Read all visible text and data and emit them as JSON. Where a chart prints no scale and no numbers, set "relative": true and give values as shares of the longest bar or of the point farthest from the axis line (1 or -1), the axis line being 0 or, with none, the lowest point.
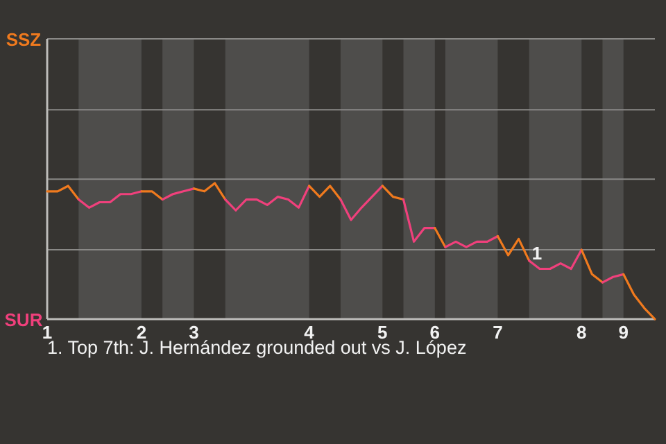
{
  "chart_data": {
    "type": "line",
    "relative": true,
    "categories": [
      "1",
      null,
      null,
      null,
      null,
      null,
      null,
      null,
      null,
      "2",
      null,
      null,
      null,
      null,
      "3",
      null,
      null,
      null,
      null,
      null,
      null,
      null,
      null,
      null,
      null,
      "4",
      null,
      null,
      null,
      null,
      null,
      null,
      "5",
      null,
      null,
      null,
      null,
      "6",
      null,
      null,
      null,
      null,
      null,
      "7",
      null,
      null,
      null,
      null,
      null,
      null,
      null,
      "8",
      null,
      null,
      null,
      "9",
      null,
      null,
      null
    ],
    "ref_lines": [
      {
        "axis": "y",
        "value": 0.51,
        "color": "#8a8987"
      },
      {
        "axis": "y",
        "value": 1.03,
        "color": "#8a8987"
      },
      {
        "axis": "y",
        "value": 1.54,
        "color": "#8a8987"
      }
    ],
    "marker": "none",
    "line_style": "solid",
    "series": [
      {
        "name": "SSZ",
        "color": "#f07a1e",
        "values": [
          0.94,
          0.94,
          0.98,
          0.88,
          null,
          null,
          null,
          null,
          null,
          null,
          null,
          null,
          null,
          null,
          null,
          null,
          null,
          null,
          null,
          null,
          null,
          null,
          null,
          null,
          null,
          null,
          null,
          null,
          null,
          null,
          null,
          null,
          null,
          null,
          null,
          null,
          null,
          null,
          null,
          null,
          null,
          null,
          null,
          null,
          null,
          null,
          null,
          null,
          null,
          null,
          null,
          null,
          null,
          null,
          null,
          null,
          null,
          null,
          null
        ]
      },
      {
        "name": "SUR",
        "color": "#f0407c",
        "values": [
          null,
          null,
          null,
          0.88,
          0.82,
          0.86,
          0.86,
          0.92,
          0.92,
          0.94,
          null,
          null,
          null,
          null,
          null,
          null,
          null,
          null,
          null,
          null,
          null,
          null,
          null,
          null,
          null,
          null,
          null,
          null,
          null,
          null,
          null,
          null,
          null,
          null,
          null,
          null,
          null,
          null,
          null,
          null,
          null,
          null,
          null,
          null,
          null,
          null,
          null,
          null,
          null,
          null,
          null,
          null,
          null,
          null,
          null,
          null,
          null,
          null,
          null
        ]
      },
      {
        "color": "#f07a1e",
        "values": [
          null,
          null,
          null,
          null,
          null,
          null,
          null,
          null,
          null,
          0.94,
          0.94,
          0.88,
          null,
          null,
          null,
          null,
          null,
          null,
          null,
          null,
          null,
          null,
          null,
          null,
          null,
          null,
          null,
          null,
          null,
          null,
          null,
          null,
          null,
          null,
          null,
          null,
          null,
          null,
          null,
          null,
          null,
          null,
          null,
          null,
          null,
          null,
          null,
          null,
          null,
          null,
          null,
          null,
          null,
          null,
          null,
          null,
          null,
          null,
          null
        ]
      },
      {
        "color": "#f0407c",
        "values": [
          null,
          null,
          null,
          null,
          null,
          null,
          null,
          null,
          null,
          null,
          null,
          0.88,
          0.92,
          0.94,
          0.96,
          null,
          null,
          null,
          null,
          null,
          null,
          null,
          null,
          null,
          null,
          null,
          null,
          null,
          null,
          null,
          null,
          null,
          null,
          null,
          null,
          null,
          null,
          null,
          null,
          null,
          null,
          null,
          null,
          null,
          null,
          null,
          null,
          null,
          null,
          null,
          null,
          null,
          null,
          null,
          null,
          null,
          null,
          null,
          null
        ]
      },
      {
        "color": "#f07a1e",
        "values": [
          null,
          null,
          null,
          null,
          null,
          null,
          null,
          null,
          null,
          null,
          null,
          null,
          null,
          null,
          0.96,
          0.94,
          1,
          0.88,
          null,
          null,
          null,
          null,
          null,
          null,
          null,
          null,
          null,
          null,
          null,
          null,
          null,
          null,
          null,
          null,
          null,
          null,
          null,
          null,
          null,
          null,
          null,
          null,
          null,
          null,
          null,
          null,
          null,
          null,
          null,
          null,
          null,
          null,
          null,
          null,
          null,
          null,
          null,
          null,
          null
        ]
      },
      {
        "color": "#f0407c",
        "values": [
          null,
          null,
          null,
          null,
          null,
          null,
          null,
          null,
          null,
          null,
          null,
          null,
          null,
          null,
          null,
          null,
          null,
          0.88,
          0.8,
          0.88,
          0.88,
          0.84,
          0.9,
          0.88,
          0.82,
          0.98,
          null,
          null,
          null,
          null,
          null,
          null,
          null,
          null,
          null,
          null,
          null,
          null,
          null,
          null,
          null,
          null,
          null,
          null,
          null,
          null,
          null,
          null,
          null,
          null,
          null,
          null,
          null,
          null,
          null,
          null,
          null,
          null,
          null
        ]
      },
      {
        "color": "#f07a1e",
        "values": [
          null,
          null,
          null,
          null,
          null,
          null,
          null,
          null,
          null,
          null,
          null,
          null,
          null,
          null,
          null,
          null,
          null,
          null,
          null,
          null,
          null,
          null,
          null,
          null,
          null,
          0.98,
          0.9,
          0.98,
          0.88,
          null,
          null,
          null,
          null,
          null,
          null,
          null,
          null,
          null,
          null,
          null,
          null,
          null,
          null,
          null,
          null,
          null,
          null,
          null,
          null,
          null,
          null,
          null,
          null,
          null,
          null,
          null,
          null,
          null,
          null
        ]
      },
      {
        "color": "#f0407c",
        "values": [
          null,
          null,
          null,
          null,
          null,
          null,
          null,
          null,
          null,
          null,
          null,
          null,
          null,
          null,
          null,
          null,
          null,
          null,
          null,
          null,
          null,
          null,
          null,
          null,
          null,
          null,
          null,
          null,
          0.88,
          0.73,
          0.82,
          0.9,
          0.98,
          null,
          null,
          null,
          null,
          null,
          null,
          null,
          null,
          null,
          null,
          null,
          null,
          null,
          null,
          null,
          null,
          null,
          null,
          null,
          null,
          null,
          null,
          null,
          null,
          null,
          null
        ]
      },
      {
        "color": "#f07a1e",
        "values": [
          null,
          null,
          null,
          null,
          null,
          null,
          null,
          null,
          null,
          null,
          null,
          null,
          null,
          null,
          null,
          null,
          null,
          null,
          null,
          null,
          null,
          null,
          null,
          null,
          null,
          null,
          null,
          null,
          null,
          null,
          null,
          null,
          0.98,
          0.9,
          0.88,
          null,
          null,
          null,
          null,
          null,
          null,
          null,
          null,
          null,
          null,
          null,
          null,
          null,
          null,
          null,
          null,
          null,
          null,
          null,
          null,
          null,
          null,
          null,
          null
        ]
      },
      {
        "color": "#f0407c",
        "values": [
          null,
          null,
          null,
          null,
          null,
          null,
          null,
          null,
          null,
          null,
          null,
          null,
          null,
          null,
          null,
          null,
          null,
          null,
          null,
          null,
          null,
          null,
          null,
          null,
          null,
          null,
          null,
          null,
          null,
          null,
          null,
          null,
          null,
          null,
          0.88,
          0.57,
          0.67,
          0.67,
          null,
          null,
          null,
          null,
          null,
          null,
          null,
          null,
          null,
          null,
          null,
          null,
          null,
          null,
          null,
          null,
          null,
          null,
          null,
          null,
          null
        ]
      },
      {
        "color": "#f07a1e",
        "values": [
          null,
          null,
          null,
          null,
          null,
          null,
          null,
          null,
          null,
          null,
          null,
          null,
          null,
          null,
          null,
          null,
          null,
          null,
          null,
          null,
          null,
          null,
          null,
          null,
          null,
          null,
          null,
          null,
          null,
          null,
          null,
          null,
          null,
          null,
          null,
          null,
          null,
          0.67,
          0.53,
          null,
          null,
          null,
          null,
          null,
          null,
          null,
          null,
          null,
          null,
          null,
          null,
          null,
          null,
          null,
          null,
          null,
          null,
          null,
          null
        ]
      },
      {
        "color": "#f0407c",
        "values": [
          null,
          null,
          null,
          null,
          null,
          null,
          null,
          null,
          null,
          null,
          null,
          null,
          null,
          null,
          null,
          null,
          null,
          null,
          null,
          null,
          null,
          null,
          null,
          null,
          null,
          null,
          null,
          null,
          null,
          null,
          null,
          null,
          null,
          null,
          null,
          null,
          null,
          null,
          0.53,
          0.57,
          0.53,
          0.57,
          0.57,
          0.61,
          null,
          null,
          null,
          null,
          null,
          null,
          null,
          null,
          null,
          null,
          null,
          null,
          null,
          null,
          null
        ]
      },
      {
        "color": "#f07a1e",
        "values": [
          null,
          null,
          null,
          null,
          null,
          null,
          null,
          null,
          null,
          null,
          null,
          null,
          null,
          null,
          null,
          null,
          null,
          null,
          null,
          null,
          null,
          null,
          null,
          null,
          null,
          null,
          null,
          null,
          null,
          null,
          null,
          null,
          null,
          null,
          null,
          null,
          null,
          null,
          null,
          null,
          null,
          null,
          null,
          0.61,
          0.47,
          0.59,
          0.43,
          null,
          null,
          null,
          null,
          null,
          null,
          null,
          null,
          null,
          null,
          null,
          null
        ]
      },
      {
        "color": "#f0407c",
        "values": [
          null,
          null,
          null,
          null,
          null,
          null,
          null,
          null,
          null,
          null,
          null,
          null,
          null,
          null,
          null,
          null,
          null,
          null,
          null,
          null,
          null,
          null,
          null,
          null,
          null,
          null,
          null,
          null,
          null,
          null,
          null,
          null,
          null,
          null,
          null,
          null,
          null,
          null,
          null,
          null,
          null,
          null,
          null,
          null,
          null,
          null,
          0.43,
          0.37,
          0.37,
          0.41,
          0.37,
          0.51,
          null,
          null,
          null,
          null,
          null,
          null,
          null
        ]
      },
      {
        "color": "#f07a1e",
        "values": [
          null,
          null,
          null,
          null,
          null,
          null,
          null,
          null,
          null,
          null,
          null,
          null,
          null,
          null,
          null,
          null,
          null,
          null,
          null,
          null,
          null,
          null,
          null,
          null,
          null,
          null,
          null,
          null,
          null,
          null,
          null,
          null,
          null,
          null,
          null,
          null,
          null,
          null,
          null,
          null,
          null,
          null,
          null,
          null,
          null,
          null,
          null,
          null,
          null,
          null,
          null,
          0.51,
          0.33,
          0.27,
          null,
          null,
          null,
          null,
          null
        ]
      },
      {
        "color": "#f0407c",
        "values": [
          null,
          null,
          null,
          null,
          null,
          null,
          null,
          null,
          null,
          null,
          null,
          null,
          null,
          null,
          null,
          null,
          null,
          null,
          null,
          null,
          null,
          null,
          null,
          null,
          null,
          null,
          null,
          null,
          null,
          null,
          null,
          null,
          null,
          null,
          null,
          null,
          null,
          null,
          null,
          null,
          null,
          null,
          null,
          null,
          null,
          null,
          null,
          null,
          null,
          null,
          null,
          null,
          null,
          0.27,
          0.31,
          0.33,
          null,
          null,
          null
        ]
      },
      {
        "color": "#f07a1e",
        "values": [
          null,
          null,
          null,
          null,
          null,
          null,
          null,
          null,
          null,
          null,
          null,
          null,
          null,
          null,
          null,
          null,
          null,
          null,
          null,
          null,
          null,
          null,
          null,
          null,
          null,
          null,
          null,
          null,
          null,
          null,
          null,
          null,
          null,
          null,
          null,
          null,
          null,
          null,
          null,
          null,
          null,
          null,
          null,
          null,
          null,
          null,
          null,
          null,
          null,
          null,
          null,
          null,
          null,
          null,
          null,
          0.33,
          0.18,
          0.08,
          0
        ]
      }
    ],
    "annotations": [
      {
        "text": "1",
        "y": 0.43
      },
      "1. Top 7th: J. Hernández grounded out vs J. López"
    ]
  }
}
